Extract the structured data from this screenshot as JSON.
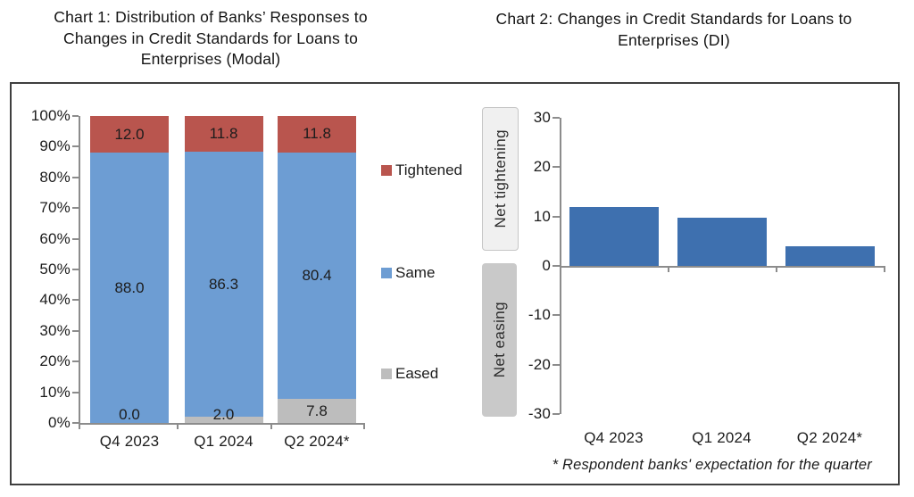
{
  "titles": {
    "chart1_line1": "Chart 1: Distribution of Banks’ Responses to",
    "chart1_line2": "Changes in Credit Standards for Loans to",
    "chart1_line3": "Enterprises (Modal)",
    "chart2_line1": "Chart 2: Changes in Credit Standards for Loans to",
    "chart2_line2": "Enterprises (DI)"
  },
  "footnote": "* Respondent banks' expectation for the quarter",
  "colors": {
    "tightened": "#B9554E",
    "same": "#6D9DD3",
    "eased": "#BDBDBD",
    "di_bar": "#3E70AF",
    "axis": "#8C8C8C",
    "net_tightening_bg": "#F0F0F0",
    "net_tightening_border": "#C6C6C6",
    "net_easing_bg": "#C9C9C9",
    "panel_border": "#3F3F3F",
    "text": "#1C1C1C"
  },
  "chart_data": [
    {
      "type": "bar",
      "subtype": "stacked-100-percent",
      "title": "Chart 1: Distribution of Banks' Responses to Changes in Credit Standards for Loans to Enterprises (Modal)",
      "categories": [
        "Q4 2023",
        "Q1 2024",
        "Q2 2024*"
      ],
      "series": [
        {
          "name": "Eased",
          "color": "#BDBDBD",
          "values": [
            0.0,
            2.0,
            7.8
          ]
        },
        {
          "name": "Same",
          "color": "#6D9DD3",
          "values": [
            88.0,
            86.3,
            80.4
          ]
        },
        {
          "name": "Tightened",
          "color": "#B9554E",
          "values": [
            12.0,
            11.8,
            11.8
          ]
        }
      ],
      "y_ticks": [
        "100%",
        "90%",
        "80%",
        "70%",
        "60%",
        "50%",
        "40%",
        "30%",
        "20%",
        "10%",
        "0%"
      ],
      "ylim": [
        0,
        100
      ],
      "legend": [
        {
          "label": "Tightened",
          "color": "#B9554E"
        },
        {
          "label": "Same",
          "color": "#6D9DD3"
        },
        {
          "label": "Eased",
          "color": "#BDBDBD"
        }
      ],
      "legend_position": "right",
      "data_labels": true,
      "grid": false
    },
    {
      "type": "bar",
      "subtype": "diffusion-index",
      "title": "Chart 2: Changes in Credit Standards for Loans to Enterprises (DI)",
      "categories": [
        "Q4 2023",
        "Q1 2024",
        "Q2 2024*"
      ],
      "values": [
        12.0,
        9.8,
        3.9
      ],
      "bar_color": "#3E70AF",
      "y_ticks": [
        "30",
        "20",
        "10",
        "0",
        "-10",
        "-20",
        "-30"
      ],
      "ylim": [
        -30,
        30
      ],
      "left_labels": [
        "Net tightening",
        "Net easing"
      ],
      "footnote": "* Respondent banks' expectation for the quarter",
      "data_labels": false,
      "grid": false
    }
  ]
}
